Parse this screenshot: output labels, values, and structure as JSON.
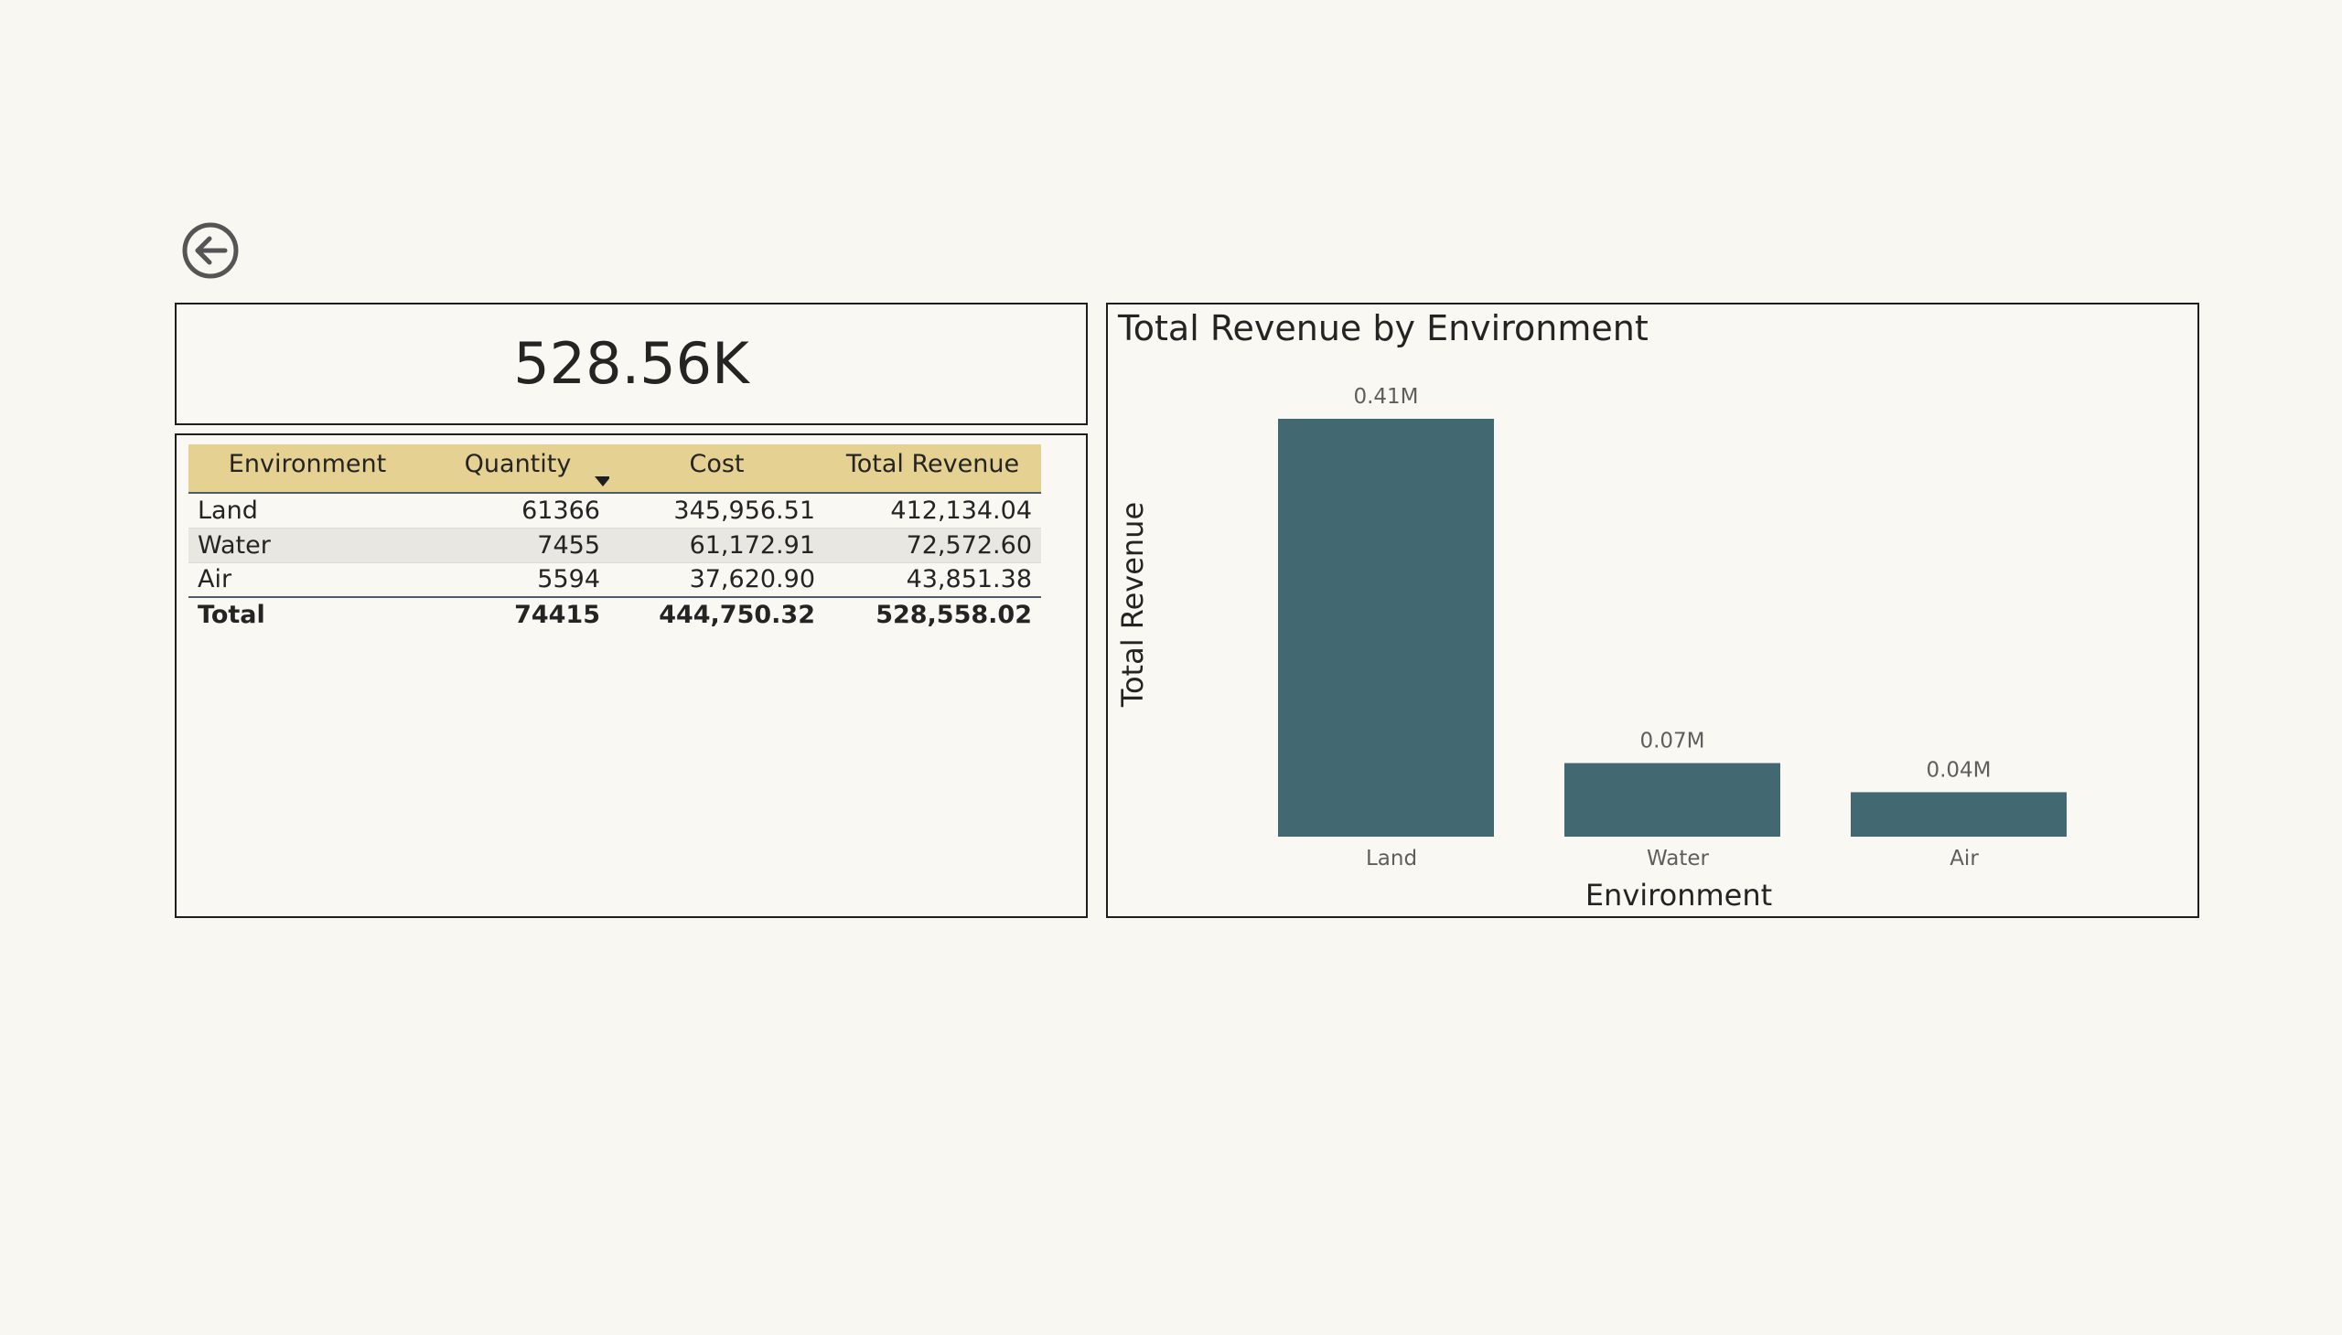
{
  "navigation": {
    "back_icon": "back-arrow-circle-icon"
  },
  "kpi": {
    "value": "528.56K"
  },
  "table": {
    "columns": [
      "Environment",
      "Quantity",
      "Cost",
      "Total Revenue"
    ],
    "sorted_column": "Quantity",
    "sort_direction": "descending",
    "rows": [
      {
        "environment": "Land",
        "quantity": "61366",
        "cost": "345,956.51",
        "revenue": "412,134.04"
      },
      {
        "environment": "Water",
        "quantity": "7455",
        "cost": "61,172.91",
        "revenue": "72,572.60"
      },
      {
        "environment": "Air",
        "quantity": "5594",
        "cost": "37,620.90",
        "revenue": "43,851.38"
      }
    ],
    "total": {
      "environment": "Total",
      "quantity": "74415",
      "cost": "444,750.32",
      "revenue": "528,558.02"
    },
    "header_color": "#e5d192"
  },
  "chart_data": {
    "type": "bar",
    "title": "Total Revenue by Environment",
    "xlabel": "Environment",
    "ylabel": "Total Revenue",
    "categories": [
      "Land",
      "Water",
      "Air"
    ],
    "values": [
      412134.04,
      72572.6,
      43851.38
    ],
    "data_labels": [
      "0.41M",
      "0.07M",
      "0.04M"
    ],
    "bar_color": "#426871",
    "grid": false
  }
}
